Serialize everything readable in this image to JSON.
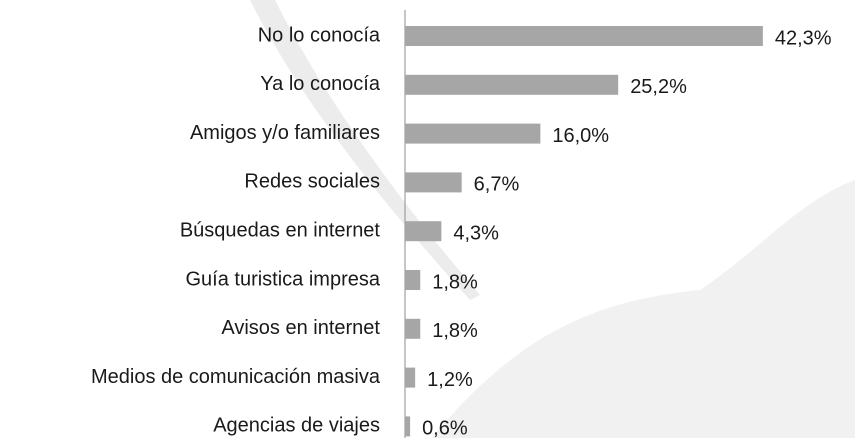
{
  "chart_data": {
    "type": "bar",
    "orientation": "horizontal",
    "categories": [
      "No lo conocía",
      "Ya lo conocía",
      "Amigos y/o familiares",
      "Redes sociales",
      "Búsquedas en internet",
      "Guía turistica impresa",
      "Avisos en internet",
      "Medios de comunicación masiva",
      "Agencias de viajes"
    ],
    "values": [
      42.3,
      25.2,
      16.0,
      6.7,
      4.3,
      1.8,
      1.8,
      1.2,
      0.6
    ],
    "value_labels": [
      "42,3%",
      "25,2%",
      "16,0%",
      "6,7%",
      "4,3%",
      "1,8%",
      "1,8%",
      "1,2%",
      "0,6%"
    ],
    "color": "#a6a6a6"
  }
}
